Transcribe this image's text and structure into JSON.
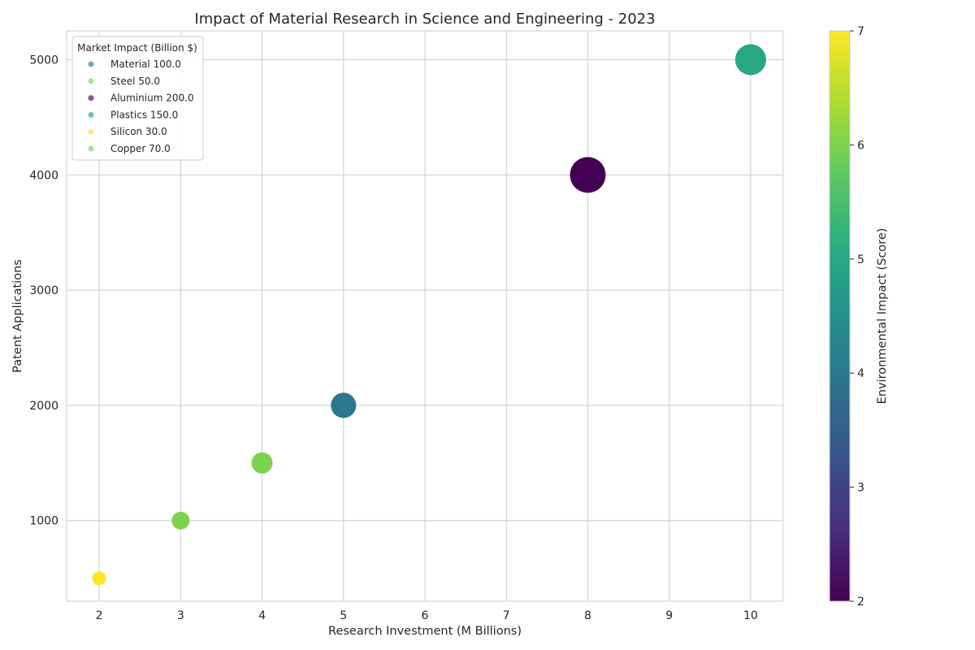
{
  "chart_data": {
    "type": "scatter",
    "title": "Impact of Material Research in Science and Engineering - 2023",
    "xlabel": "Research Investment (M Billions)",
    "ylabel": "Patent Applications",
    "xlim": [
      1.6,
      10.4
    ],
    "ylim": [
      300,
      5250
    ],
    "xticks": [
      "2",
      "3",
      "4",
      "5",
      "6",
      "7",
      "8",
      "9",
      "10"
    ],
    "yticks": [
      "1000",
      "2000",
      "3000",
      "4000",
      "5000"
    ],
    "grid": true,
    "points": [
      {
        "x": 2,
        "y": 500,
        "size": 30,
        "color_value": 7
      },
      {
        "x": 3,
        "y": 1000,
        "size": 50,
        "color_value": 6
      },
      {
        "x": 4,
        "y": 1500,
        "size": 70,
        "color_value": 6
      },
      {
        "x": 5,
        "y": 2000,
        "size": 100,
        "color_value": 4
      },
      {
        "x": 8,
        "y": 4000,
        "size": 200,
        "color_value": 2
      },
      {
        "x": 10,
        "y": 5000,
        "size": 150,
        "color_value": 5
      }
    ],
    "legend": {
      "title": "Market Impact (Billion $)",
      "placement": "top-left",
      "entries": [
        {
          "label": "Material 100.0",
          "color": "#2a788e"
        },
        {
          "label": "Steel 50.0",
          "color": "#7ad151"
        },
        {
          "label": "Aluminium 200.0",
          "color": "#440154"
        },
        {
          "label": "Plastics 150.0",
          "color": "#22a884"
        },
        {
          "label": "Silicon 30.0",
          "color": "#fde725"
        },
        {
          "label": "Copper 70.0",
          "color": "#7ad151"
        }
      ]
    },
    "colorbar": {
      "label": "Environmental Impact (Score)",
      "range": [
        2,
        7
      ],
      "ticks": [
        "2",
        "3",
        "4",
        "5",
        "6",
        "7"
      ],
      "colormap": "viridis"
    }
  }
}
